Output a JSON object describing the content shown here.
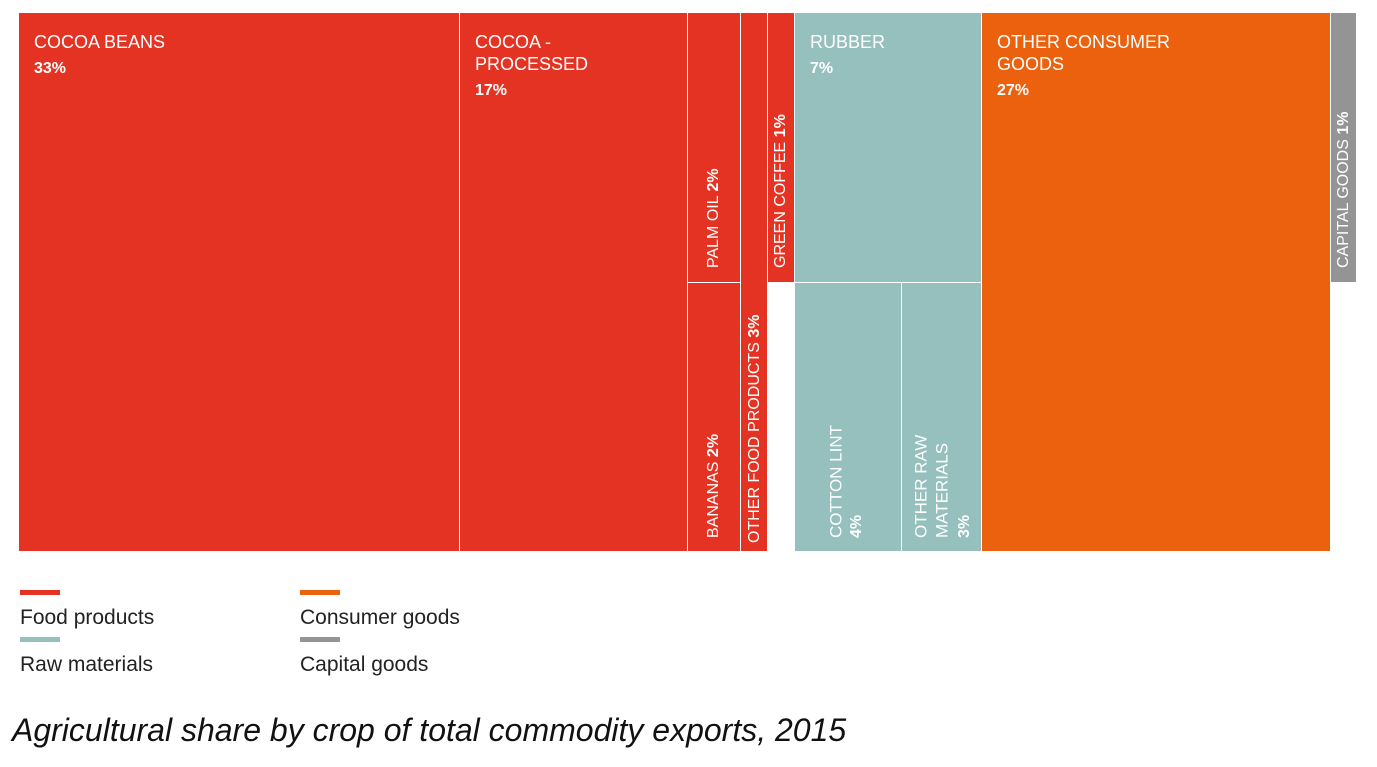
{
  "chart_data": {
    "type": "treemap",
    "title": "Agricultural share by crop of total commodity exports, 2015",
    "categories": [
      {
        "name": "Food products",
        "color": "#e53323"
      },
      {
        "name": "Raw materials",
        "color": "#95c0bd"
      },
      {
        "name": "Consumer goods",
        "color": "#eb610d"
      },
      {
        "name": "Capital goods",
        "color": "#949494"
      }
    ],
    "items": [
      {
        "label": "COCOA BEANS",
        "percent": "33%",
        "value": 33,
        "category": "Food products"
      },
      {
        "label": "COCOA - PROCESSED",
        "percent": "17%",
        "value": 17,
        "category": "Food products"
      },
      {
        "label": "PALM OIL",
        "percent": "2%",
        "value": 2,
        "category": "Food products"
      },
      {
        "label": "BANANAS",
        "percent": "2%",
        "value": 2,
        "category": "Food products"
      },
      {
        "label": "OTHER FOOD PRODUCTS",
        "percent": "3%",
        "value": 3,
        "category": "Food products"
      },
      {
        "label": "GREEN COFFEE",
        "percent": "1%",
        "value": 1,
        "category": "Food products"
      },
      {
        "label": "RUBBER",
        "percent": "7%",
        "value": 7,
        "category": "Raw materials"
      },
      {
        "label": "COTTON LINT",
        "percent": "4%",
        "value": 4,
        "category": "Raw materials"
      },
      {
        "label": "OTHER RAW MATERIALS",
        "percent": "3%",
        "value": 3,
        "category": "Raw materials"
      },
      {
        "label": "OTHER CONSUMER GOODS",
        "percent": "27%",
        "value": 27,
        "category": "Consumer goods"
      },
      {
        "label": "CAPITAL GOODS",
        "percent": "1%",
        "value": 1,
        "category": "Capital goods"
      }
    ]
  },
  "legend": {
    "food": "Food products",
    "raw": "Raw materials",
    "consumer": "Consumer goods",
    "capital": "Capital goods"
  },
  "caption": "Agricultural share by crop of total commodity exports, 2015"
}
